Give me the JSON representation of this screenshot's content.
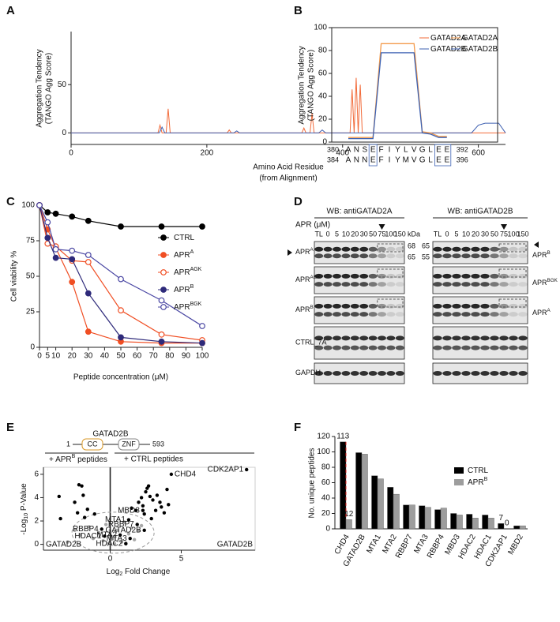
{
  "panel_labels": [
    "A",
    "B",
    "C",
    "D",
    "E",
    "F"
  ],
  "chart_data": [
    {
      "type": "line",
      "ylabel": [
        "Aggregation Tendency",
        "(TANGO Agg Score)"
      ],
      "xlabel": [
        "Amino Acid Residue",
        "(from Alignment)"
      ],
      "xlim": [
        0,
        640
      ],
      "xticks": [
        0,
        200,
        400,
        600
      ],
      "ylim": [
        -12,
        105
      ],
      "yticks": [
        0,
        50
      ],
      "series": [
        {
          "name": "GATAD2A",
          "color": "#f26b3a",
          "x": [
            0,
            128,
            131,
            134,
            137,
            140,
            143,
            146,
            149,
            152,
            230,
            233,
            236,
            340,
            343,
            346,
            352,
            355,
            358,
            361,
            364,
            411,
            414,
            417,
            420,
            423,
            426,
            429,
            432,
            500,
            560,
            640
          ],
          "values": [
            0,
            0,
            8,
            0,
            0,
            0,
            25,
            0,
            0,
            0,
            0,
            3,
            0,
            0,
            5,
            0,
            0,
            20,
            0,
            0,
            0,
            0,
            45,
            0,
            57,
            0,
            50,
            0,
            0,
            0,
            0,
            0
          ]
        },
        {
          "name": "GATAD2B",
          "color": "#3d5fb0",
          "x": [
            0,
            130,
            134,
            138,
            240,
            244,
            248,
            365,
            370,
            375,
            590,
            600,
            610,
            620,
            630,
            640
          ],
          "values": [
            0,
            0,
            6,
            0,
            0,
            2,
            0,
            0,
            3,
            0,
            0,
            8,
            10,
            10,
            10,
            0
          ]
        }
      ]
    },
    {
      "type": "profile",
      "ylabel": [
        "Aggregation Tendency",
        "(TANGO Agg Score)"
      ],
      "ylim": [
        0,
        100
      ],
      "yticks": [
        0,
        20,
        40,
        60,
        80,
        100
      ],
      "series": [
        {
          "name": "GATAD2A",
          "color": "#f39a4b",
          "first": 380,
          "last": 392,
          "residues": [
            "A",
            "N",
            "S",
            "E",
            "F",
            "I",
            "Y",
            "L",
            "V",
            "G",
            "L",
            "E",
            "E"
          ],
          "values": [
            4,
            4,
            4,
            4,
            86,
            86,
            86,
            86,
            86,
            9,
            8,
            5,
            5
          ]
        },
        {
          "name": "GATAD2B",
          "color": "#3d62b3",
          "first": 384,
          "last": 396,
          "residues": [
            "A",
            "N",
            "N",
            "E",
            "F",
            "I",
            "Y",
            "M",
            "V",
            "G",
            "L",
            "E",
            "E"
          ],
          "values": [
            3,
            3,
            3,
            3,
            78,
            78,
            78,
            78,
            78,
            8,
            7,
            4,
            4
          ]
        }
      ]
    },
    {
      "type": "line",
      "markers": true,
      "ylabel": "Cell viability %",
      "xlabel": "Peptide concentration (μM)",
      "xlim": [
        0,
        100
      ],
      "xticks": [
        0,
        5,
        10,
        20,
        30,
        40,
        50,
        60,
        70,
        80,
        90,
        100
      ],
      "ylim": [
        0,
        100
      ],
      "yticks": [
        0,
        25,
        50,
        75,
        100
      ],
      "series": [
        {
          "name": "CTRL",
          "color": "#000000",
          "filled": true,
          "x": [
            0,
            5,
            10,
            20,
            30,
            50,
            75,
            100
          ],
          "values": [
            100,
            95,
            94,
            92,
            89,
            85,
            85,
            85
          ]
        },
        {
          "name": "APR",
          "name_sup": "A",
          "color": "#f04e23",
          "filled": true,
          "x": [
            0,
            5,
            10,
            20,
            30,
            50,
            75,
            100
          ],
          "values": [
            100,
            83,
            70,
            46,
            11,
            4,
            3,
            3
          ]
        },
        {
          "name": "APR",
          "name_sup": "AGK",
          "color": "#f04e23",
          "filled": false,
          "x": [
            0,
            5,
            10,
            20,
            30,
            50,
            75,
            100
          ],
          "values": [
            100,
            73,
            71,
            61,
            60,
            26,
            9,
            5
          ]
        },
        {
          "name": "APR",
          "name_sup": "B",
          "color": "#2e2a7a",
          "filled": true,
          "x": [
            0,
            5,
            10,
            20,
            30,
            50,
            75,
            100
          ],
          "values": [
            100,
            77,
            63,
            62,
            38,
            7,
            4,
            3
          ]
        },
        {
          "name": "APR",
          "name_sup": "BGK",
          "color": "#4a47a3",
          "filled": false,
          "x": [
            0,
            5,
            10,
            20,
            30,
            50,
            75,
            100
          ],
          "values": [
            100,
            88,
            69,
            68,
            65,
            48,
            33,
            15
          ]
        }
      ]
    },
    {
      "type": "scatter",
      "protein": {
        "name": "GATAD2B",
        "start": 1,
        "end": 593,
        "domains": [
          "CC",
          "ZNF"
        ]
      },
      "left_header": {
        "text": "+ APR",
        "sup": "B",
        "after": " peptides"
      },
      "right_header": "+ CTRL peptides",
      "ylabel": {
        "text": "-Log",
        "sub": "10",
        "after": " P-Value"
      },
      "xlabel": {
        "text": "Log",
        "sub": "2",
        "after": " Fold Change"
      },
      "xlim": [
        -4.7,
        10.2
      ],
      "xticks": [
        0,
        5
      ],
      "ylim": [
        -0.5,
        6.6
      ],
      "yticks": [
        0,
        2,
        4,
        6
      ],
      "series": [
        {
          "color": "#000000",
          "x": [
            -3.6,
            -3.5,
            -2.2,
            -2.0,
            -1.9,
            -2.5,
            -2.3,
            -1.8,
            -1.6,
            -1.1,
            1.5,
            1.8,
            2.0,
            2.2,
            2.3,
            2.4,
            2.5,
            2.6,
            2.7,
            2.8,
            2.9,
            3.0,
            3.2,
            3.3,
            3.5,
            3.6,
            3.8,
            4.0,
            4.1
          ],
          "values": [
            4.1,
            2.2,
            5.1,
            5.0,
            4.2,
            3.6,
            2.7,
            2.3,
            3.0,
            2.6,
            3.1,
            2.9,
            3.6,
            4.0,
            3.3,
            2.6,
            4.5,
            4.8,
            5.0,
            4.1,
            2.2,
            3.8,
            2.9,
            4.2,
            3.6,
            3.2,
            2.7,
            4.7,
            3.4
          ]
        },
        {
          "color": "#a8a8a8",
          "x": [
            -3.0,
            -2.5,
            -2.1,
            -1.5,
            -1.2,
            -0.8,
            -0.5,
            -0.3,
            -0.1,
            0.2,
            0.3,
            0.5,
            0.8,
            1.0,
            1.1,
            1.3,
            1.5,
            1.7,
            2.0,
            2.2
          ],
          "values": [
            0.2,
            1.2,
            0.8,
            1.5,
            0.5,
            1.0,
            0.3,
            1.7,
            0.1,
            0.5,
            0.05,
            1.2,
            0.2,
            1.9,
            0.1,
            0.9,
            1.4,
            0.4,
            1.2,
            1.6
          ]
        }
      ],
      "annotations": [
        {
          "text": "CDK2AP1",
          "x": 9.6,
          "y": 6.4,
          "color": "#e0201b"
        },
        {
          "text": "CHD4",
          "x": 4.3,
          "y": 6.0,
          "color": "#e0201b"
        },
        {
          "text": "MBD3",
          "x": 2.3,
          "y": 2.9,
          "color": "#000000"
        },
        {
          "text": "MTA1",
          "x": 1.3,
          "y": 2.1,
          "color": "#000000"
        },
        {
          "text": "RBBP7",
          "x": 1.9,
          "y": 1.7,
          "color": "#000000"
        },
        {
          "text": "GATAD2B",
          "x": 2.4,
          "y": 1.2,
          "color": "#000000"
        },
        {
          "text": "MTA2",
          "x": 0.7,
          "y": 0.8,
          "color": "#000000"
        },
        {
          "text": "HDAC1",
          "x": -0.4,
          "y": 0.7,
          "color": "#000000"
        },
        {
          "text": "RBBP4",
          "x": -0.6,
          "y": 1.3,
          "color": "#000000"
        },
        {
          "text": "MTA3",
          "x": 1.4,
          "y": 0.5,
          "color": "#000000"
        },
        {
          "text": "HDAC2",
          "x": 1.1,
          "y": 0.05,
          "color": "#000000"
        }
      ],
      "corner_labels": [
        "GATAD2B",
        "GATAD2B"
      ]
    },
    {
      "type": "bar",
      "ylabel": "No. unique peptides",
      "categories": [
        "CHD4",
        "GATAD2B",
        "MTA1",
        "MTA2",
        "RBBP7",
        "MTA3",
        "RBBP4",
        "MBD3",
        "HDAC2",
        "HDAC1",
        "CDK2AP1",
        "MBD2"
      ],
      "ylim": [
        0,
        120
      ],
      "yticks": [
        0,
        20,
        40,
        60,
        80,
        100,
        120
      ],
      "value_label_color": "#e0201b",
      "series": [
        {
          "name": "CTRL",
          "color": "#000000",
          "values": [
            113,
            99,
            69,
            54,
            31,
            30,
            25,
            20,
            19,
            18,
            7,
            4
          ],
          "value_labels": [
            "113",
            null,
            null,
            null,
            null,
            null,
            null,
            null,
            null,
            null,
            "7",
            null
          ]
        },
        {
          "name": "APR",
          "name_sup": "B",
          "color": "#9d9d9d",
          "values": [
            12,
            97,
            65,
            45,
            31,
            28,
            27,
            18,
            14,
            14,
            0,
            4
          ],
          "value_labels": [
            "12",
            null,
            null,
            null,
            null,
            null,
            null,
            null,
            null,
            null,
            "0",
            null
          ]
        }
      ]
    }
  ],
  "blots": [
    {
      "title": "WB: antiGATAD2A",
      "conc_label": "APR (μM)",
      "kda": "kDa",
      "lanes": [
        "TL",
        "0",
        "5",
        "10",
        "20",
        "30",
        "50",
        "75",
        "100",
        "150"
      ],
      "markers": [
        "68",
        "65"
      ],
      "rows": [
        {
          "text": "APR",
          "sup": "A"
        },
        {
          "text": "APR",
          "sup": "AGK"
        },
        {
          "text": "APR",
          "sup": "B"
        },
        {
          "text": "CTRL_7A"
        },
        {
          "text": "GAPDH"
        }
      ]
    },
    {
      "title": "WB: antiGATAD2B",
      "lanes": [
        "TL",
        "0",
        "5",
        "10",
        "20",
        "30",
        "50",
        "75",
        "100",
        "150"
      ],
      "markers": [
        "65",
        "55"
      ],
      "rows": [
        {
          "text": "APR",
          "sup": "B"
        },
        {
          "text": "APR",
          "sup": "BGK"
        },
        {
          "text": "APR",
          "sup": "A"
        }
      ]
    }
  ]
}
